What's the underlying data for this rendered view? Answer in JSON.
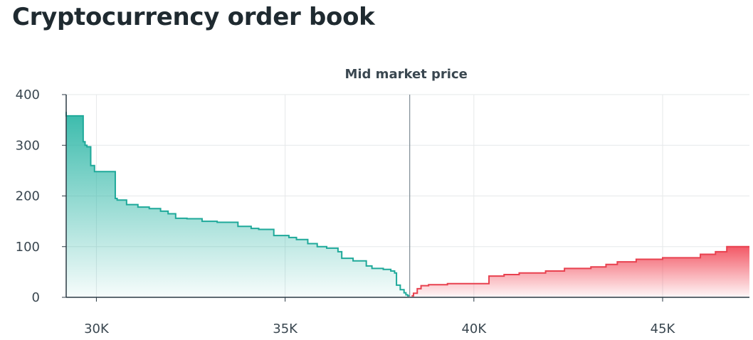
{
  "title": "Cryptocurrency order book",
  "chart_data": {
    "type": "area",
    "annotation": "Mid market price",
    "mid_price": 38300,
    "xlim": [
      29200,
      47300
    ],
    "ylim": [
      0,
      400
    ],
    "x_ticks": [
      30000,
      35000,
      40000,
      45000
    ],
    "x_tick_labels": [
      "30K",
      "35K",
      "40K",
      "45K"
    ],
    "y_ticks": [
      0,
      100,
      200,
      300,
      400
    ],
    "y_tick_labels": [
      "0",
      "100",
      "200",
      "300",
      "400"
    ],
    "grid": true,
    "colors": {
      "bids": "#1fa99a",
      "asks": "#e8414f"
    },
    "series": [
      {
        "side": "bids",
        "x": [
          38300,
          38250,
          38200,
          38150,
          38050,
          37950,
          37900,
          37800,
          37600,
          37300,
          37150,
          36800,
          36500,
          36400,
          36100,
          35850,
          35600,
          35300,
          35100,
          34700,
          34300,
          34100,
          33750,
          33200,
          32800,
          32400,
          32100,
          31900,
          31700,
          31400,
          31100,
          30800,
          30550,
          30500,
          29950,
          29850,
          29750,
          29700,
          29650,
          29200
        ],
        "y": [
          3,
          5,
          9,
          15,
          24,
          48,
          52,
          55,
          57,
          62,
          72,
          77,
          90,
          97,
          100,
          106,
          114,
          118,
          122,
          134,
          136,
          140,
          148,
          150,
          155,
          156,
          165,
          170,
          175,
          178,
          183,
          192,
          195,
          248,
          260,
          297,
          300,
          307,
          358,
          366
        ]
      },
      {
        "side": "asks",
        "x": [
          38350,
          38400,
          38500,
          38600,
          38800,
          39300,
          40400,
          40800,
          41200,
          41900,
          42400,
          43100,
          43500,
          43800,
          44300,
          45000,
          46000,
          46400,
          46700,
          47300
        ],
        "y": [
          3,
          8,
          17,
          23,
          25,
          27,
          42,
          45,
          48,
          52,
          57,
          60,
          65,
          70,
          75,
          78,
          85,
          90,
          100,
          100
        ]
      }
    ]
  }
}
